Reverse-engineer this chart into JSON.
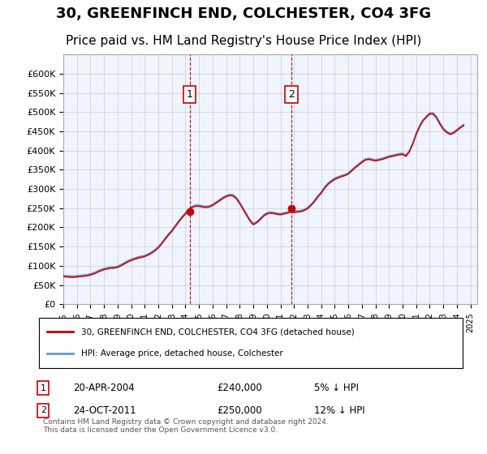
{
  "title": "30, GREENFINCH END, COLCHESTER, CO4 3FG",
  "subtitle": "Price paid vs. HM Land Registry's House Price Index (HPI)",
  "title_fontsize": 13,
  "subtitle_fontsize": 11,
  "xlabel": "",
  "ylabel": "",
  "ylim": [
    0,
    650000
  ],
  "yticks": [
    0,
    50000,
    100000,
    150000,
    200000,
    250000,
    300000,
    350000,
    400000,
    450000,
    500000,
    550000,
    600000
  ],
  "background_color": "#ffffff",
  "plot_bg_color": "#f0f4ff",
  "grid_color": "#cccccc",
  "sale1_date": "20-APR-2004",
  "sale1_price": 240000,
  "sale1_hpi_pct": "5%",
  "sale2_date": "24-OCT-2011",
  "sale2_price": 250000,
  "sale2_hpi_pct": "12%",
  "sale1_x": 2004.3,
  "sale2_x": 2011.8,
  "line_house_color": "#cc0000",
  "line_hpi_color": "#6699cc",
  "vline_color": "#cc0000",
  "legend_house_label": "30, GREENFINCH END, COLCHESTER, CO4 3FG (detached house)",
  "legend_hpi_label": "HPI: Average price, detached house, Colchester",
  "footer": "Contains HM Land Registry data © Crown copyright and database right 2024.\nThis data is licensed under the Open Government Licence v3.0.",
  "hpi_data": {
    "years": [
      1995.0,
      1995.25,
      1995.5,
      1995.75,
      1996.0,
      1996.25,
      1996.5,
      1996.75,
      1997.0,
      1997.25,
      1997.5,
      1997.75,
      1998.0,
      1998.25,
      1998.5,
      1998.75,
      1999.0,
      1999.25,
      1999.5,
      1999.75,
      2000.0,
      2000.25,
      2000.5,
      2000.75,
      2001.0,
      2001.25,
      2001.5,
      2001.75,
      2002.0,
      2002.25,
      2002.5,
      2002.75,
      2003.0,
      2003.25,
      2003.5,
      2003.75,
      2004.0,
      2004.25,
      2004.5,
      2004.75,
      2005.0,
      2005.25,
      2005.5,
      2005.75,
      2006.0,
      2006.25,
      2006.5,
      2006.75,
      2007.0,
      2007.25,
      2007.5,
      2007.75,
      2008.0,
      2008.25,
      2008.5,
      2008.75,
      2009.0,
      2009.25,
      2009.5,
      2009.75,
      2010.0,
      2010.25,
      2010.5,
      2010.75,
      2011.0,
      2011.25,
      2011.5,
      2011.75,
      2012.0,
      2012.25,
      2012.5,
      2012.75,
      2013.0,
      2013.25,
      2013.5,
      2013.75,
      2014.0,
      2014.25,
      2014.5,
      2014.75,
      2015.0,
      2015.25,
      2015.5,
      2015.75,
      2016.0,
      2016.25,
      2016.5,
      2016.75,
      2017.0,
      2017.25,
      2017.5,
      2017.75,
      2018.0,
      2018.25,
      2018.5,
      2018.75,
      2019.0,
      2019.25,
      2019.5,
      2019.75,
      2020.0,
      2020.25,
      2020.5,
      2020.75,
      2021.0,
      2021.25,
      2021.5,
      2021.75,
      2022.0,
      2022.25,
      2022.5,
      2022.75,
      2023.0,
      2023.25,
      2023.5,
      2023.75,
      2024.0,
      2024.25,
      2024.5
    ],
    "values": [
      75000,
      74000,
      73500,
      73000,
      74000,
      75000,
      76000,
      77000,
      79000,
      82000,
      86000,
      90000,
      93000,
      95000,
      97000,
      97000,
      99000,
      103000,
      108000,
      113000,
      117000,
      120000,
      123000,
      125000,
      127000,
      131000,
      136000,
      142000,
      150000,
      160000,
      172000,
      183000,
      193000,
      205000,
      217000,
      228000,
      238000,
      248000,
      255000,
      258000,
      258000,
      256000,
      255000,
      256000,
      260000,
      266000,
      272000,
      278000,
      283000,
      286000,
      285000,
      278000,
      265000,
      250000,
      235000,
      220000,
      210000,
      215000,
      223000,
      232000,
      238000,
      240000,
      239000,
      237000,
      236000,
      238000,
      240000,
      243000,
      242000,
      243000,
      244000,
      247000,
      252000,
      260000,
      270000,
      282000,
      292000,
      305000,
      315000,
      322000,
      328000,
      332000,
      335000,
      338000,
      342000,
      350000,
      358000,
      365000,
      372000,
      378000,
      380000,
      378000,
      376000,
      378000,
      380000,
      383000,
      386000,
      388000,
      390000,
      392000,
      393000,
      388000,
      400000,
      420000,
      445000,
      465000,
      480000,
      490000,
      498000,
      498000,
      488000,
      472000,
      458000,
      450000,
      445000,
      448000,
      455000,
      462000,
      468000
    ]
  },
  "house_data": {
    "years": [
      1995.0,
      1995.25,
      1995.5,
      1995.75,
      1996.0,
      1996.25,
      1996.5,
      1996.75,
      1997.0,
      1997.25,
      1997.5,
      1997.75,
      1998.0,
      1998.25,
      1998.5,
      1998.75,
      1999.0,
      1999.25,
      1999.5,
      1999.75,
      2000.0,
      2000.25,
      2000.5,
      2000.75,
      2001.0,
      2001.25,
      2001.5,
      2001.75,
      2002.0,
      2002.25,
      2002.5,
      2002.75,
      2003.0,
      2003.25,
      2003.5,
      2003.75,
      2004.0,
      2004.25,
      2004.5,
      2004.75,
      2005.0,
      2005.25,
      2005.5,
      2005.75,
      2006.0,
      2006.25,
      2006.5,
      2006.75,
      2007.0,
      2007.25,
      2007.5,
      2007.75,
      2008.0,
      2008.25,
      2008.5,
      2008.75,
      2009.0,
      2009.25,
      2009.5,
      2009.75,
      2010.0,
      2010.25,
      2010.5,
      2010.75,
      2011.0,
      2011.25,
      2011.5,
      2011.75,
      2012.0,
      2012.25,
      2012.5,
      2012.75,
      2013.0,
      2013.25,
      2013.5,
      2013.75,
      2014.0,
      2014.25,
      2014.5,
      2014.75,
      2015.0,
      2015.25,
      2015.5,
      2015.75,
      2016.0,
      2016.25,
      2016.5,
      2016.75,
      2017.0,
      2017.25,
      2017.5,
      2017.75,
      2018.0,
      2018.25,
      2018.5,
      2018.75,
      2019.0,
      2019.25,
      2019.5,
      2019.75,
      2020.0,
      2020.25,
      2020.5,
      2020.75,
      2021.0,
      2021.25,
      2021.5,
      2021.75,
      2022.0,
      2022.25,
      2022.5,
      2022.75,
      2023.0,
      2023.25,
      2023.5,
      2023.75,
      2024.0,
      2024.25,
      2024.5
    ],
    "values": [
      72000,
      71000,
      70500,
      70000,
      71000,
      72000,
      73000,
      74000,
      76000,
      79000,
      83000,
      87000,
      90000,
      92000,
      94000,
      94000,
      96000,
      100000,
      105000,
      110000,
      114000,
      117000,
      120000,
      122000,
      124000,
      128000,
      133000,
      139000,
      147000,
      157000,
      169000,
      180000,
      190000,
      202000,
      214000,
      225000,
      235000,
      245000,
      252000,
      255000,
      255000,
      253000,
      252000,
      253000,
      257000,
      263000,
      269000,
      275000,
      280000,
      283000,
      282000,
      275000,
      262000,
      247000,
      232000,
      217000,
      207000,
      212000,
      220000,
      229000,
      235000,
      237000,
      236000,
      234000,
      233000,
      235000,
      237000,
      240000,
      239000,
      240000,
      241000,
      244000,
      249000,
      257000,
      267000,
      279000,
      289000,
      302000,
      312000,
      319000,
      325000,
      329000,
      332000,
      335000,
      339000,
      347000,
      355000,
      362000,
      369000,
      375000,
      377000,
      375000,
      373000,
      375000,
      377000,
      380000,
      383000,
      385000,
      387000,
      389000,
      390000,
      385000,
      397000,
      417000,
      442000,
      462000,
      477000,
      487000,
      495000,
      495000,
      485000,
      469000,
      455000,
      447000,
      442000,
      445000,
      452000,
      459000,
      465000
    ]
  }
}
